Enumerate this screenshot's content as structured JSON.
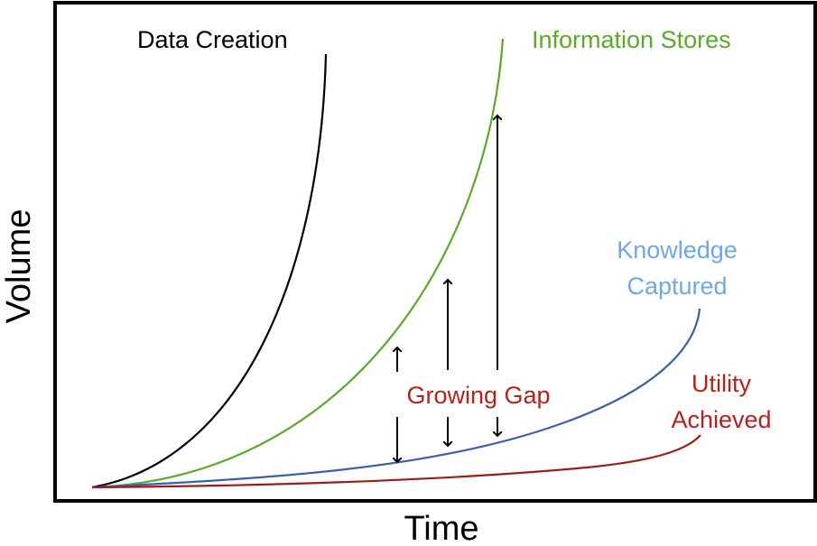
{
  "chart_data": {
    "type": "line",
    "xlabel": "Time",
    "ylabel": "Volume",
    "grid": false,
    "series": [
      {
        "name": "Data Creation",
        "color": "#000000"
      },
      {
        "name": "Information Stores",
        "color": "#5aaa28"
      },
      {
        "name": "Knowledge Captured",
        "color": "#3a5fad",
        "label_color": "#6ea8e8",
        "label_lines": [
          "Knowledge",
          "Captured"
        ]
      },
      {
        "name": "Utility Achieved",
        "color": "#9e1c17",
        "label_color": "#b7211c",
        "label_lines": [
          "Utility",
          "Achieved"
        ]
      }
    ],
    "annotations": [
      {
        "text": "Growing Gap",
        "color": "#b7211c"
      }
    ]
  }
}
